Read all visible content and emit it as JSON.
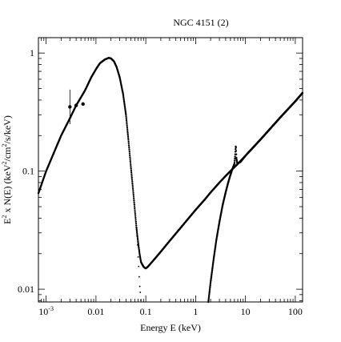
{
  "chart_data": {
    "type": "scatter",
    "title": "NGC 4151 (2)",
    "xlabel": "Energy E (keV)",
    "ylabel_parts": {
      "pre": "E",
      "pre_sup": "2",
      "mid": " x N(E) (keV",
      "mid_sup": "2",
      "post": "/cm",
      "post_sup": "2",
      "end": "/s/keV)"
    },
    "x_scale": "log",
    "y_scale": "log",
    "xlim": [
      0.0007,
      140
    ],
    "ylim": [
      0.0078,
      1.35
    ],
    "x_tick_labels": [
      {
        "value": 0.001,
        "base": "10",
        "exp": "-3"
      },
      {
        "value": 0.01,
        "text": "0.01"
      },
      {
        "value": 0.1,
        "text": "0.1"
      },
      {
        "value": 1,
        "text": "1"
      },
      {
        "value": 10,
        "text": "10"
      },
      {
        "value": 100,
        "text": "100"
      }
    ],
    "y_tick_labels": [
      {
        "value": 0.01,
        "text": "0.01"
      },
      {
        "value": 0.1,
        "text": "0.1"
      },
      {
        "value": 1,
        "text": "1"
      }
    ],
    "grid": false,
    "series": [
      {
        "x": [
          0.0007,
          0.001,
          0.0015,
          0.002,
          0.003,
          0.004,
          0.006,
          0.008,
          0.01,
          0.012,
          0.015,
          0.018,
          0.02,
          0.023,
          0.026,
          0.03,
          0.035,
          0.04,
          0.045,
          0.05,
          0.055,
          0.06,
          0.065,
          0.07,
          0.075,
          0.08,
          0.085,
          0.09,
          0.095,
          0.1,
          0.11,
          0.13,
          0.16,
          0.2,
          0.3,
          0.5,
          0.8,
          1.0,
          1.5,
          2.0,
          3.0,
          4.0,
          5.0,
          6.0,
          7.0,
          10.0,
          20.0,
          50.0,
          100.0,
          140.0
        ],
        "y": [
          0.065,
          0.1,
          0.15,
          0.2,
          0.28,
          0.36,
          0.48,
          0.62,
          0.73,
          0.82,
          0.88,
          0.91,
          0.9,
          0.85,
          0.76,
          0.62,
          0.45,
          0.3,
          0.18,
          0.11,
          0.072,
          0.048,
          0.033,
          0.025,
          0.02,
          0.017,
          0.0162,
          0.0155,
          0.0152,
          0.015,
          0.0155,
          0.0168,
          0.0186,
          0.0208,
          0.0256,
          0.0331,
          0.042,
          0.047,
          0.057,
          0.066,
          0.08,
          0.091,
          0.1,
          0.108,
          0.115,
          0.135,
          0.185,
          0.285,
          0.39,
          0.46
        ]
      },
      {
        "x": [
          0.065,
          0.068,
          0.07,
          0.073,
          0.075,
          0.078,
          0.08
        ],
        "y": [
          0.033,
          0.025,
          0.019,
          0.014,
          0.011,
          0.0092,
          0.0078
        ]
      },
      {
        "x": [
          1.8,
          2.0,
          2.3,
          2.6,
          3.0,
          3.5,
          4.0,
          4.5,
          5.0,
          5.5,
          6.0,
          6.2,
          6.4,
          6.6,
          6.8,
          7.0,
          8.0,
          10.0,
          20.0,
          50.0,
          100.0,
          140.0
        ],
        "y": [
          0.0078,
          0.0115,
          0.018,
          0.026,
          0.037,
          0.052,
          0.066,
          0.08,
          0.093,
          0.105,
          0.115,
          0.135,
          0.165,
          0.128,
          0.118,
          0.116,
          0.12,
          0.135,
          0.185,
          0.285,
          0.39,
          0.46
        ]
      },
      {
        "x": [
          0.003,
          0.004,
          0.0055
        ],
        "y": [
          0.35,
          0.36,
          0.37
        ]
      }
    ]
  }
}
